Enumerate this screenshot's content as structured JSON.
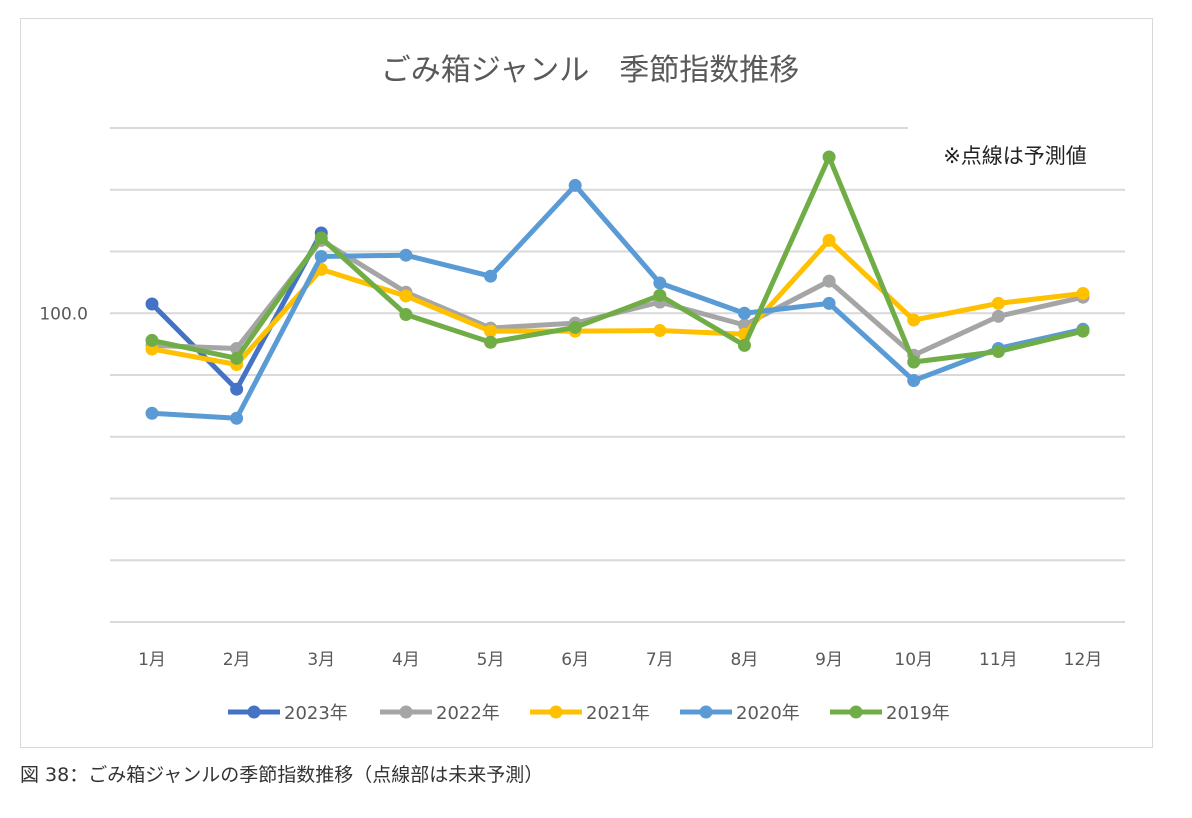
{
  "chart_data": {
    "type": "line",
    "title": "ごみ箱ジャンル　季節指数推移",
    "annotation": "※点線は予測値",
    "categories": [
      "1月",
      "2月",
      "3月",
      "4月",
      "5月",
      "6月",
      "7月",
      "8月",
      "9月",
      "10月",
      "11月",
      "12月"
    ],
    "y_tick_labels": [
      "100.0"
    ],
    "ylim": [
      50,
      130
    ],
    "grid": true,
    "legend_position": "bottom",
    "series": [
      {
        "name": "2023年",
        "color": "#4472C4",
        "values": [
          101.5,
          87.7,
          113.0,
          null,
          null,
          null,
          null,
          null,
          null,
          null,
          null,
          null
        ]
      },
      {
        "name": "2022年",
        "color": "#A5A5A5",
        "values": [
          94.8,
          94.3,
          111.8,
          103.4,
          97.6,
          98.4,
          101.8,
          98.1,
          105.2,
          93.2,
          99.5,
          102.6
        ]
      },
      {
        "name": "2021年",
        "color": "#FFC000",
        "values": [
          94.2,
          91.7,
          107.1,
          102.8,
          97.1,
          97.1,
          97.2,
          96.6,
          111.8,
          98.9,
          101.6,
          103.2
        ]
      },
      {
        "name": "2020年",
        "color": "#5B9BD5",
        "values": [
          83.8,
          83.0,
          109.2,
          109.4,
          106.0,
          120.7,
          104.9,
          100.0,
          101.6,
          89.1,
          94.3,
          97.4
        ]
      },
      {
        "name": "2019年",
        "color": "#70AD47",
        "values": [
          95.6,
          92.7,
          112.2,
          99.8,
          95.3,
          97.7,
          102.9,
          94.8,
          125.3,
          92.1,
          93.8,
          97.1
        ]
      }
    ]
  },
  "caption": "図 38：ごみ箱ジャンルの季節指数推移（点線部は未来予測）"
}
